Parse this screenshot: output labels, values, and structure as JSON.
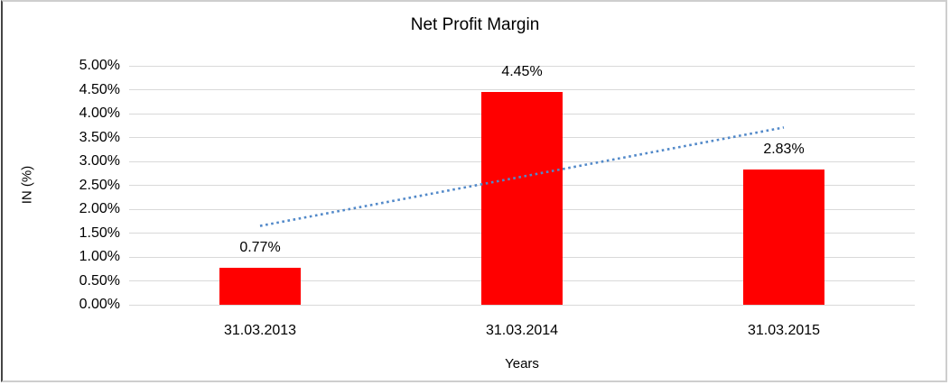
{
  "chart_data": {
    "type": "bar",
    "title": "Net Profit Margin",
    "xlabel": "Years",
    "ylabel": "IN (%)",
    "categories": [
      "31.03.2013",
      "31.03.2014",
      "31.03.2015"
    ],
    "values": [
      0.77,
      4.45,
      2.83
    ],
    "data_labels": [
      "0.77%",
      "4.45%",
      "2.83%"
    ],
    "ylim": [
      0,
      5
    ],
    "ytick_step": 0.5,
    "ytick_labels": [
      "0.00%",
      "0.50%",
      "1.00%",
      "1.50%",
      "2.00%",
      "2.50%",
      "3.00%",
      "3.50%",
      "4.00%",
      "4.50%",
      "5.00%"
    ],
    "grid": true,
    "legend": "none",
    "bar_color": "#ff0000",
    "gridline_color": "#d9d9d9",
    "trendline": {
      "type": "linear",
      "style": "dotted",
      "color": "#5289c9",
      "start_value": 1.65,
      "end_value": 3.71
    }
  }
}
